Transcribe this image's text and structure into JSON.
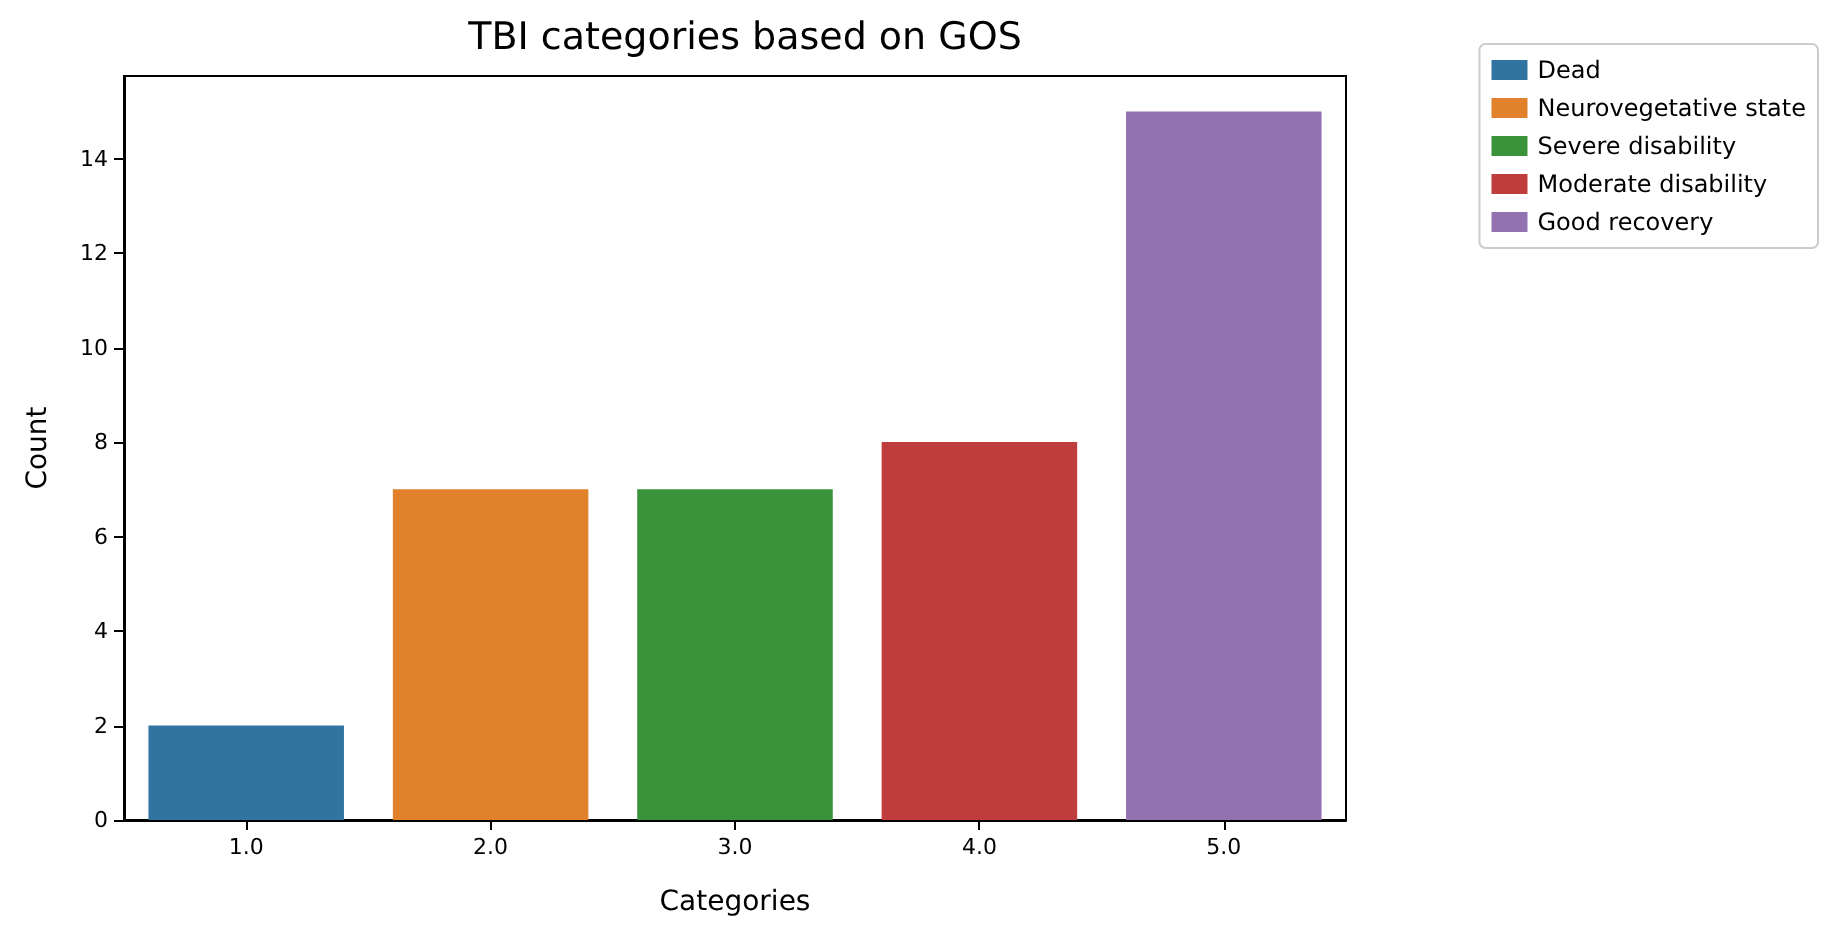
{
  "chart_data": {
    "type": "bar",
    "title": "TBI categories based on GOS",
    "xlabel": "Categories",
    "ylabel": "Count",
    "categories": [
      "1.0",
      "2.0",
      "3.0",
      "4.0",
      "5.0"
    ],
    "series": [
      {
        "name": "Dead",
        "color": "#3274a1",
        "values": [
          2,
          null,
          null,
          null,
          null
        ]
      },
      {
        "name": "Neurovegetative state",
        "color": "#e1812c",
        "values": [
          null,
          7,
          null,
          null,
          null
        ]
      },
      {
        "name": "Severe disability",
        "color": "#3a923a",
        "values": [
          null,
          null,
          7,
          null,
          null
        ]
      },
      {
        "name": "Moderate disability",
        "color": "#c03d3e",
        "values": [
          null,
          null,
          null,
          8,
          null
        ]
      },
      {
        "name": "Good recovery",
        "color": "#9372b2",
        "values": [
          null,
          null,
          null,
          null,
          15
        ]
      }
    ],
    "ylim": [
      0,
      15.75
    ],
    "yticks": [
      0,
      2,
      4,
      6,
      8,
      10,
      12,
      14
    ],
    "grid": false,
    "legend": "top right"
  }
}
